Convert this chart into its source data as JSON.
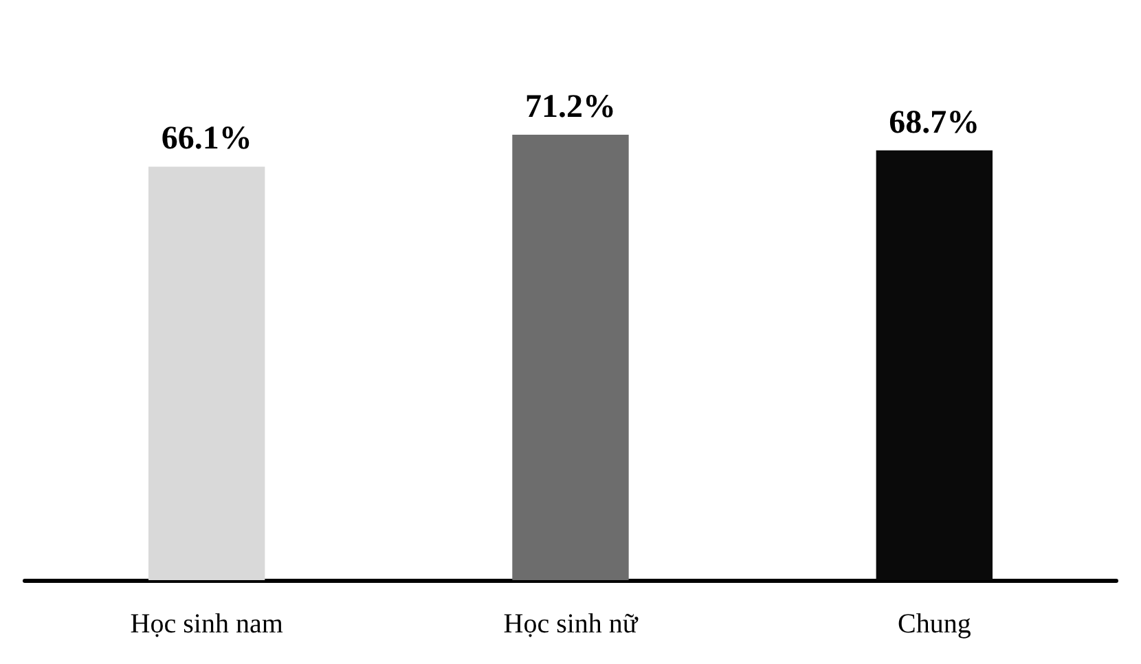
{
  "chart_data": {
    "type": "bar",
    "categories": [
      "Học sinh nam",
      "Học sinh nữ",
      "Chung"
    ],
    "values": [
      66.1,
      71.2,
      68.7
    ],
    "colors": [
      "#d9d9d9",
      "#6d6d6d",
      "#0a0a0a"
    ],
    "value_labels": [
      "66.1%",
      "71.2%",
      "68.7%"
    ]
  }
}
